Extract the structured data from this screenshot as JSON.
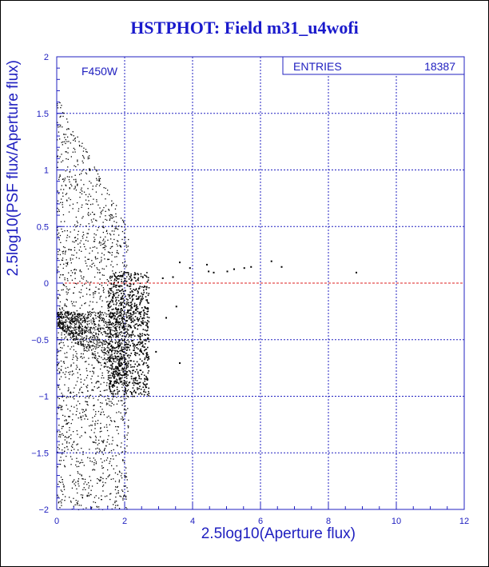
{
  "title": "HSTPHOT: Field m31_u4wofi",
  "filter_label": "F450W",
  "stats_box": {
    "label": "ENTRIES",
    "value": "18387"
  },
  "colors": {
    "frame": "#000000",
    "axis": "#2020c0",
    "grid": "#2020c0",
    "zero_line": "#dd2222",
    "points": "#000000",
    "text": "#2020c0"
  },
  "chart_data": {
    "type": "scatter",
    "title": "HSTPHOT: Field m31_u4wofi",
    "xlabel": "2.5log10(Aperture flux)",
    "ylabel": "2.5log10(PSF flux/Aperture flux)",
    "xlim": [
      0,
      12
    ],
    "ylim": [
      -2,
      2
    ],
    "x_ticks": [
      0,
      2,
      4,
      6,
      8,
      10,
      12
    ],
    "x_tick_labels": [
      "0",
      "2",
      "4",
      "6",
      "8",
      "10",
      "12"
    ],
    "y_ticks": [
      -2,
      -1.5,
      -1,
      -0.5,
      0,
      0.5,
      1,
      1.5,
      2
    ],
    "y_tick_labels": [
      "−2",
      "−1.5",
      "−1",
      "−0.5",
      "0",
      "0.5",
      "1",
      "1.5",
      "2"
    ],
    "grid": "dashed",
    "reference_line": {
      "y": 0,
      "style": "dashed"
    },
    "entries": 18387,
    "sample_points": [
      [
        3.6,
        0.19
      ],
      [
        3.9,
        0.14
      ],
      [
        4.4,
        0.17
      ],
      [
        4.45,
        0.11
      ],
      [
        4.6,
        0.1
      ],
      [
        5.0,
        0.11
      ],
      [
        5.2,
        0.13
      ],
      [
        5.5,
        0.14
      ],
      [
        5.7,
        0.15
      ],
      [
        6.3,
        0.2
      ],
      [
        6.6,
        0.15
      ],
      [
        8.8,
        0.1
      ],
      [
        3.5,
        -0.2
      ],
      [
        3.6,
        -0.7
      ],
      [
        3.2,
        -0.3
      ],
      [
        3.1,
        0.05
      ],
      [
        3.4,
        0.06
      ],
      [
        2.9,
        -0.6
      ]
    ],
    "bulk_region": {
      "x_range": [
        0,
        3.2
      ],
      "y_range": [
        -2,
        1.7
      ]
    }
  }
}
